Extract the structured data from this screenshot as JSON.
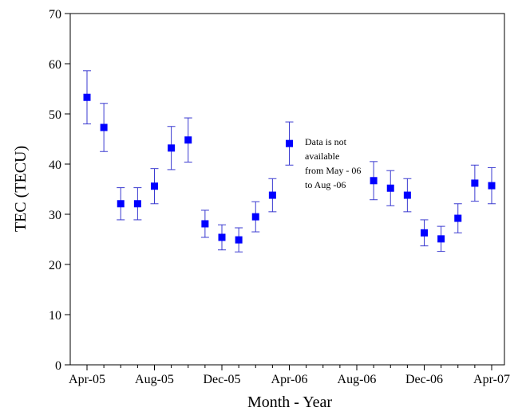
{
  "chart_data": {
    "type": "scatter",
    "x_label": "Month - Year",
    "y_label": "TEC (TECU)",
    "categories": [
      "Apr-05",
      null,
      null,
      null,
      "Aug-05",
      null,
      null,
      null,
      "Dec-05",
      null,
      null,
      null,
      "Apr-06",
      null,
      null,
      null,
      "Aug-06",
      null,
      null,
      null,
      "Dec-06",
      null,
      null,
      null,
      "Apr-07"
    ],
    "series": [
      {
        "color": "#0000ff",
        "error_color": "#3a3ad0",
        "values": [
          53.3,
          47.3,
          32.1,
          32.1,
          35.6,
          43.2,
          44.8,
          28.1,
          25.4,
          24.9,
          29.5,
          33.8,
          44.1,
          null,
          null,
          null,
          null,
          36.7,
          35.2,
          33.8,
          26.3,
          25.1,
          29.2,
          36.2,
          35.7
        ],
        "errors": [
          5.3,
          4.8,
          3.2,
          3.2,
          3.5,
          4.3,
          4.4,
          2.7,
          2.5,
          2.4,
          3.0,
          3.3,
          4.3,
          null,
          null,
          null,
          null,
          3.8,
          3.5,
          3.3,
          2.6,
          2.5,
          2.9,
          3.6,
          3.6
        ]
      }
    ],
    "ylim": [
      0,
      70
    ],
    "yticks": [
      0,
      10,
      20,
      30,
      40,
      50,
      60,
      70
    ],
    "annotation": [
      "Data is not",
      "available",
      "from May - 06",
      "to Aug -06"
    ]
  }
}
